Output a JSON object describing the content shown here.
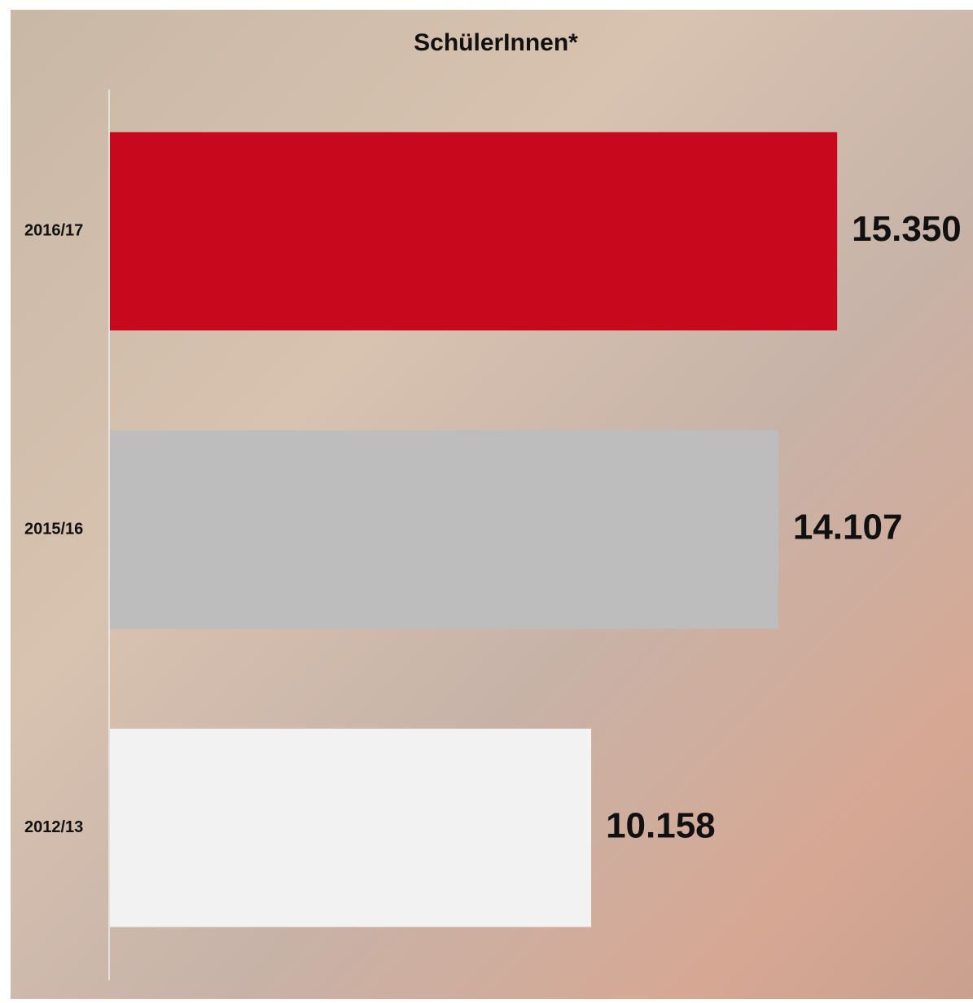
{
  "chart_data": {
    "type": "hbar",
    "title": "SchülerInnen*",
    "categories": [
      "2016/17",
      "2015/16",
      "2012/13"
    ],
    "values": [
      15350,
      14107,
      10158
    ],
    "value_labels": [
      "15.350",
      "14.107",
      "10.158"
    ],
    "colors": [
      "#c8081c",
      "#bdbdbd",
      "#f2f2f2"
    ],
    "xlim": [
      0,
      16000
    ]
  }
}
